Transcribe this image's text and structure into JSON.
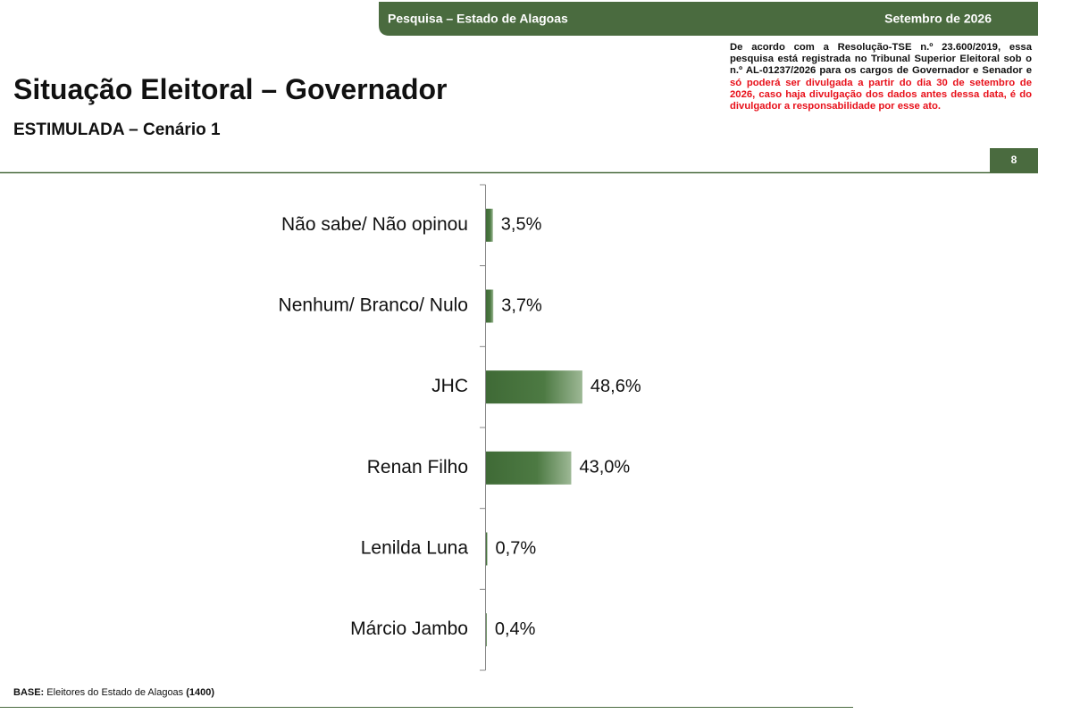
{
  "header": {
    "left": "Pesquisa – Estado de Alagoas",
    "right": "Setembro de 2026"
  },
  "notice": {
    "text": "De acordo com a Resolução-TSE n.º 23.600/2019, essa pesquisa está registrada no Tribunal Superior Eleitoral sob o n.º AL-01237/2026 para os cargos de Governador e Senador e",
    "warning": "só poderá ser divulgada a partir do dia 30 de setembro de 2026, caso haja divulgação dos dados antes dessa data, é do divulgador a responsabilidade por esse ato."
  },
  "page_number": "8",
  "base": {
    "label": "BASE:",
    "text": "Eleitores do Estado de Alagoas",
    "count": "(1400)"
  },
  "chart_data": {
    "type": "hbar",
    "title": "Situação Eleitoral – Governador",
    "subtitle": "ESTIMULADA – Cenário 1",
    "categories": [
      "Não sabe/ Não opinou",
      "Nenhum/ Branco/ Nulo",
      "JHC",
      "Renan Filho",
      "Lenilda Luna",
      "Márcio Jambo"
    ],
    "values": [
      3.5,
      3.7,
      48.6,
      43.0,
      0.7,
      0.4
    ],
    "value_labels": [
      "3,5%",
      "3,7%",
      "48,6%",
      "43,0%",
      "0,7%",
      "0,4%"
    ],
    "color": "#3f6a36"
  }
}
